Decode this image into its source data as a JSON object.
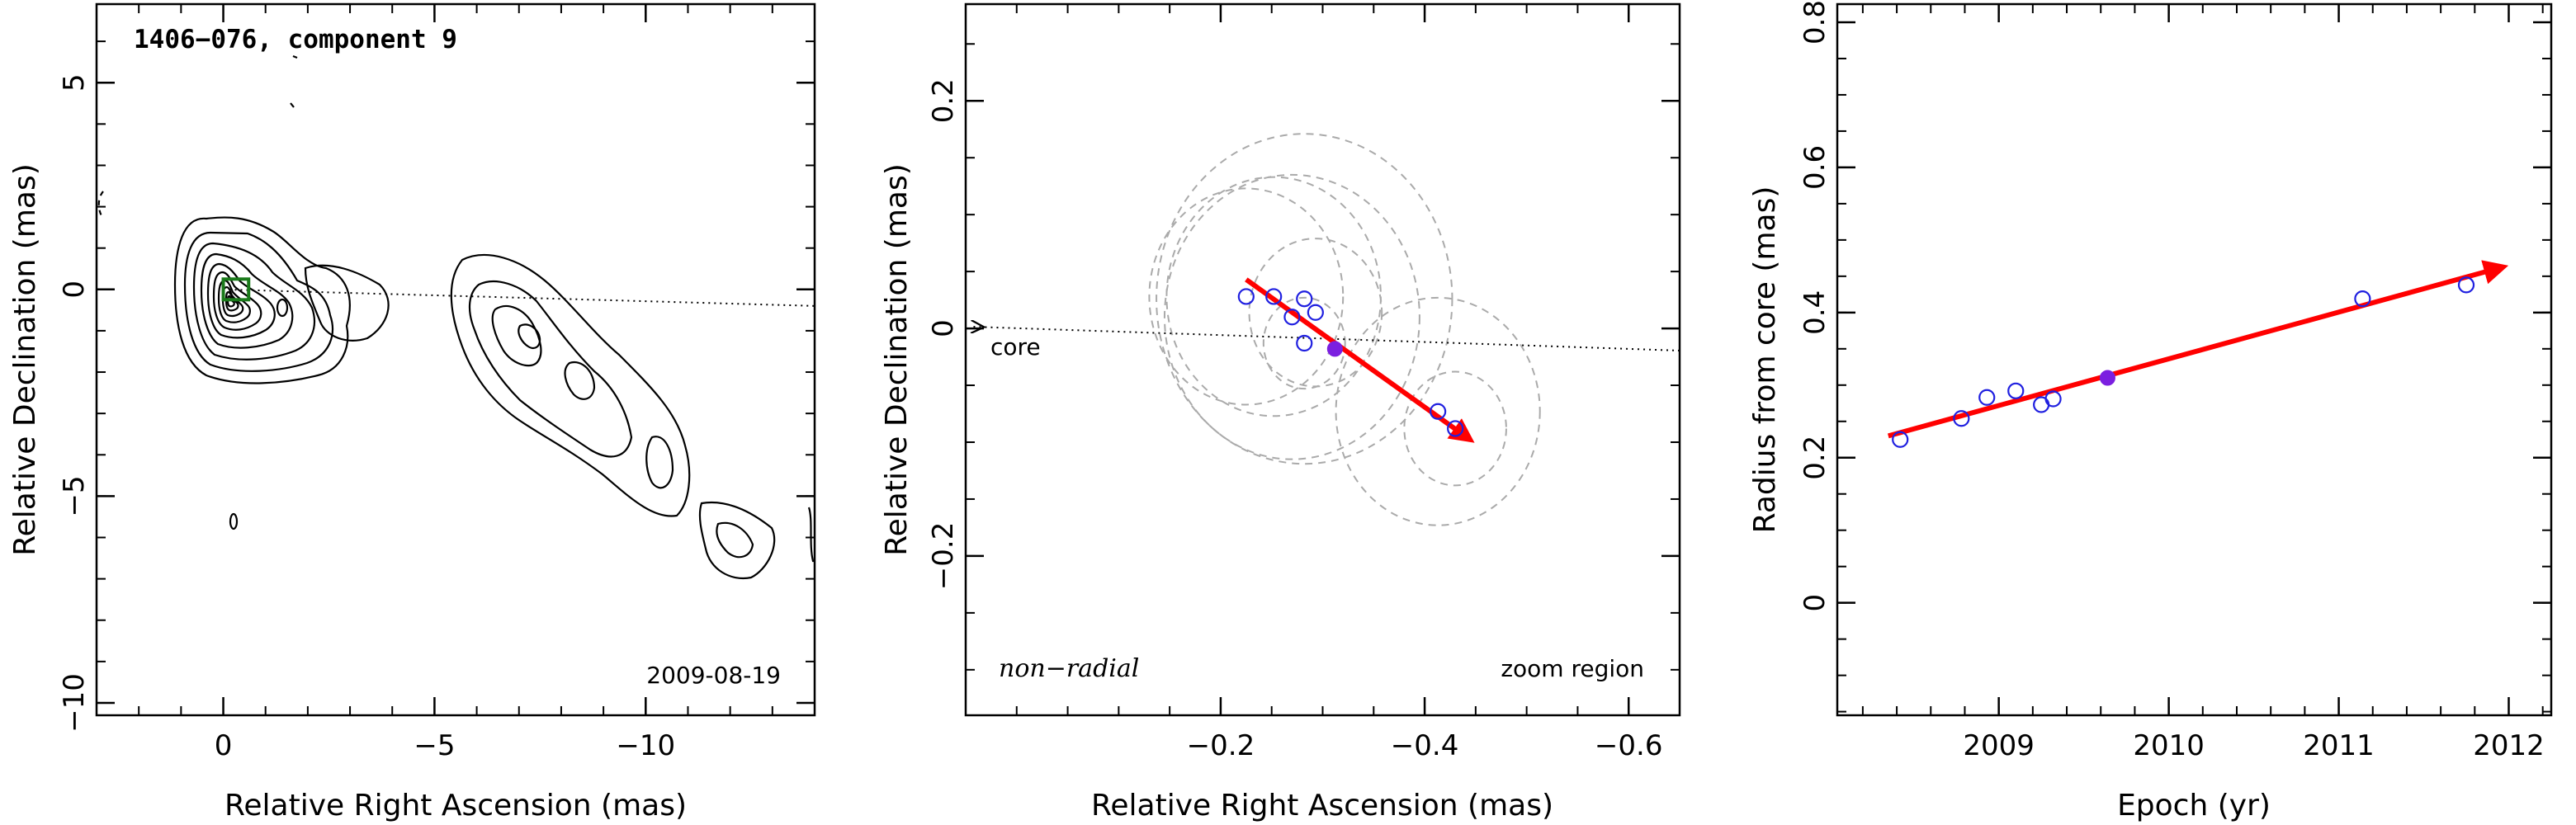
{
  "chart_data": [
    {
      "type": "contour",
      "title": "1406−076, component 9",
      "date": "2009-08-19",
      "xlabel": "Relative Right Ascension (mas)",
      "ylabel": "Relative Declination (mas)",
      "xlim": [
        3,
        -14
      ],
      "ylim": [
        -10.3,
        6.9
      ],
      "xticks": [
        0,
        -5,
        -10
      ],
      "xtick_labels": [
        "0",
        "−5",
        "−10"
      ],
      "yticks": [
        5,
        0,
        -5,
        -10
      ],
      "ytick_labels": [
        "5",
        "0",
        "−5",
        "−10"
      ],
      "core_line": [
        {
          "x": 0,
          "y": 0
        },
        {
          "x": -14,
          "y": -0.4
        }
      ],
      "component_box": {
        "x": [
          0,
          -0.6
        ],
        "y": [
          -0.25,
          0.25
        ],
        "color": "#1a7a1a"
      }
    },
    {
      "type": "scatter",
      "xlabel": "Relative Right Ascension (mas)",
      "ylabel": "Relative Declination (mas)",
      "xlim": [
        0.05,
        -0.65
      ],
      "ylim": [
        -0.34,
        0.285
      ],
      "xticks": [
        -0.2,
        -0.4,
        -0.6
      ],
      "xtick_labels": [
        "−0.2",
        "−0.4",
        "−0.6"
      ],
      "yticks": [
        0.2,
        0,
        -0.2
      ],
      "ytick_labels": [
        "0.2",
        "0",
        "−0.2"
      ],
      "points": [
        {
          "x": -0.225,
          "y": 0.028,
          "r": 0.095
        },
        {
          "x": -0.252,
          "y": 0.028,
          "r": 0.105
        },
        {
          "x": -0.27,
          "y": 0.01,
          "r": 0.125
        },
        {
          "x": -0.282,
          "y": 0.026,
          "r": 0.145
        },
        {
          "x": -0.293,
          "y": 0.014,
          "r": 0.065
        },
        {
          "x": -0.282,
          "y": -0.013,
          "r": 0.04
        },
        {
          "x": -0.413,
          "y": -0.073,
          "r": 0.1
        },
        {
          "x": -0.43,
          "y": -0.088,
          "r": 0.05
        }
      ],
      "highlight": {
        "x": -0.312,
        "y": -0.018,
        "color": "#7b1fe0"
      },
      "arrow": {
        "x0": -0.225,
        "y0": 0.043,
        "x1": -0.445,
        "y1": -0.098,
        "color": "#ff0000"
      },
      "core_line": [
        {
          "x": 0.05,
          "y": 0.0015
        },
        {
          "x": -0.65,
          "y": -0.0195
        }
      ],
      "core_label": "core",
      "motion_label": "non−radial",
      "region_label": "zoom region",
      "point_color": "#2020e0",
      "circle_color": "#aaaaaa"
    },
    {
      "type": "scatter",
      "xlabel": "Epoch (yr)",
      "ylabel": "Radius from core (mas)",
      "xlim": [
        2008.05,
        2012.25
      ],
      "ylim": [
        -0.155,
        0.825
      ],
      "xticks": [
        2009,
        2010,
        2011,
        2012
      ],
      "xtick_labels": [
        "2009",
        "2010",
        "2011",
        "2012"
      ],
      "yticks": [
        0,
        0.2,
        0.4,
        0.6,
        0.8
      ],
      "ytick_labels": [
        "0",
        "0.2",
        "0.4",
        "0.6",
        "0.8"
      ],
      "points": [
        {
          "x": 2008.42,
          "y": 0.225
        },
        {
          "x": 2008.78,
          "y": 0.254
        },
        {
          "x": 2008.93,
          "y": 0.283
        },
        {
          "x": 2009.1,
          "y": 0.292
        },
        {
          "x": 2009.25,
          "y": 0.273
        },
        {
          "x": 2009.32,
          "y": 0.281
        },
        {
          "x": 2011.14,
          "y": 0.419
        },
        {
          "x": 2011.75,
          "y": 0.438
        }
      ],
      "highlight": {
        "x": 2009.64,
        "y": 0.31,
        "color": "#7b1fe0"
      },
      "arrow": {
        "x0": 2008.35,
        "y0": 0.23,
        "x1": 2011.97,
        "y1": 0.463,
        "color": "#ff0000"
      },
      "point_color": "#2020e0"
    }
  ]
}
